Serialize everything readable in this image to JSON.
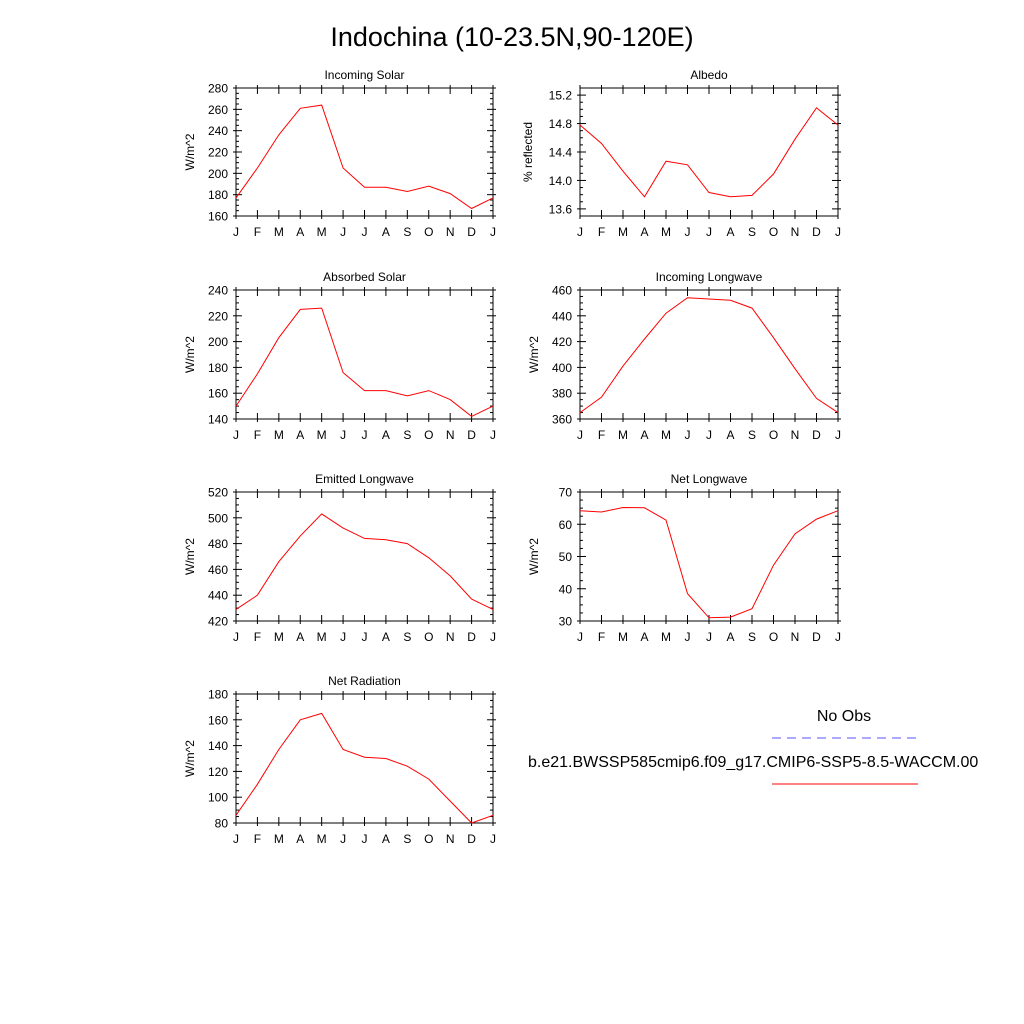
{
  "page_title": "Indochina (10-23.5N,90-120E)",
  "x_tick_labels": [
    "J",
    "F",
    "M",
    "A",
    "M",
    "J",
    "J",
    "A",
    "S",
    "O",
    "N",
    "D",
    "J"
  ],
  "colors": {
    "model": "#ff0000",
    "obs": "#5555ff",
    "axes": "#000000"
  },
  "legend": {
    "obs_label": "No Obs",
    "model_label": "b.e21.BWSSP585cmip6.f09_g17.CMIP6-SSP5-8.5-WACCM.00"
  },
  "chart_data": [
    {
      "type": "line",
      "title": "Incoming Solar",
      "ylabel": "W/m^2",
      "ylim": [
        160,
        280
      ],
      "yticks": [
        160,
        180,
        200,
        220,
        240,
        260,
        280
      ],
      "ytick_labels": [
        "160",
        "180",
        "200",
        "220",
        "240",
        "260",
        "280"
      ],
      "x": [
        "J",
        "F",
        "M",
        "A",
        "M",
        "J",
        "J",
        "A",
        "S",
        "O",
        "N",
        "D",
        "J"
      ],
      "values": [
        177,
        205,
        236,
        261,
        264,
        205,
        187,
        187,
        183,
        188,
        181,
        167,
        177
      ]
    },
    {
      "type": "line",
      "title": "Albedo",
      "ylabel": "% reflected",
      "ylim": [
        13.5,
        15.3
      ],
      "yticks": [
        13.6,
        14.0,
        14.4,
        14.8,
        15.2
      ],
      "ytick_labels": [
        "13.6",
        "14.0",
        "14.4",
        "14.8",
        "15.2"
      ],
      "x": [
        "J",
        "F",
        "M",
        "A",
        "M",
        "J",
        "J",
        "A",
        "S",
        "O",
        "N",
        "D",
        "J"
      ],
      "values": [
        14.78,
        14.52,
        14.13,
        13.77,
        14.27,
        14.22,
        13.83,
        13.77,
        13.79,
        14.09,
        14.58,
        15.02,
        14.78
      ]
    },
    {
      "type": "line",
      "title": "Absorbed Solar",
      "ylabel": "W/m^2",
      "ylim": [
        140,
        240
      ],
      "yticks": [
        140,
        160,
        180,
        200,
        220,
        240
      ],
      "ytick_labels": [
        "140",
        "160",
        "180",
        "200",
        "220",
        "240"
      ],
      "x": [
        "J",
        "F",
        "M",
        "A",
        "M",
        "J",
        "J",
        "A",
        "S",
        "O",
        "N",
        "D",
        "J"
      ],
      "values": [
        150,
        175,
        203,
        225,
        226,
        176,
        162,
        162,
        158,
        162,
        155,
        142,
        150
      ]
    },
    {
      "type": "line",
      "title": "Incoming Longwave",
      "ylabel": "W/m^2",
      "ylim": [
        360,
        460
      ],
      "yticks": [
        360,
        380,
        400,
        420,
        440,
        460
      ],
      "ytick_labels": [
        "360",
        "380",
        "400",
        "420",
        "440",
        "460"
      ],
      "x": [
        "J",
        "F",
        "M",
        "A",
        "M",
        "J",
        "J",
        "A",
        "S",
        "O",
        "N",
        "D",
        "J"
      ],
      "values": [
        365,
        377,
        401,
        422,
        442,
        454,
        453,
        452,
        446,
        423,
        399,
        376,
        365
      ]
    },
    {
      "type": "line",
      "title": "Emitted Longwave",
      "ylabel": "W/m^2",
      "ylim": [
        420,
        520
      ],
      "yticks": [
        420,
        440,
        460,
        480,
        500,
        520
      ],
      "ytick_labels": [
        "420",
        "440",
        "460",
        "480",
        "500",
        "520"
      ],
      "x": [
        "J",
        "F",
        "M",
        "A",
        "M",
        "J",
        "J",
        "A",
        "S",
        "O",
        "N",
        "D",
        "J"
      ],
      "values": [
        429,
        440,
        466,
        486,
        503,
        492,
        484,
        483,
        480,
        469,
        455,
        437,
        429
      ]
    },
    {
      "type": "line",
      "title": "Net Longwave",
      "ylabel": "W/m^2",
      "ylim": [
        30,
        70
      ],
      "yticks": [
        30,
        40,
        50,
        60,
        70
      ],
      "ytick_labels": [
        "30",
        "40",
        "50",
        "60",
        "70"
      ],
      "x": [
        "J",
        "F",
        "M",
        "A",
        "M",
        "J",
        "J",
        "A",
        "S",
        "O",
        "N",
        "D",
        "J"
      ],
      "values": [
        64.2,
        63.8,
        65.2,
        65.1,
        61.3,
        38.5,
        31.0,
        31.2,
        33.8,
        47.3,
        57.0,
        61.6,
        64.2
      ]
    },
    {
      "type": "line",
      "title": "Net Radiation",
      "ylabel": "W/m^2",
      "ylim": [
        80,
        180
      ],
      "yticks": [
        80,
        100,
        120,
        140,
        160,
        180
      ],
      "ytick_labels": [
        "80",
        "100",
        "120",
        "140",
        "160",
        "180"
      ],
      "x": [
        "J",
        "F",
        "M",
        "A",
        "M",
        "J",
        "J",
        "A",
        "S",
        "O",
        "N",
        "D",
        "J"
      ],
      "values": [
        86,
        110,
        137,
        160,
        165,
        137,
        131,
        130,
        124,
        114,
        97,
        80,
        86
      ]
    }
  ]
}
